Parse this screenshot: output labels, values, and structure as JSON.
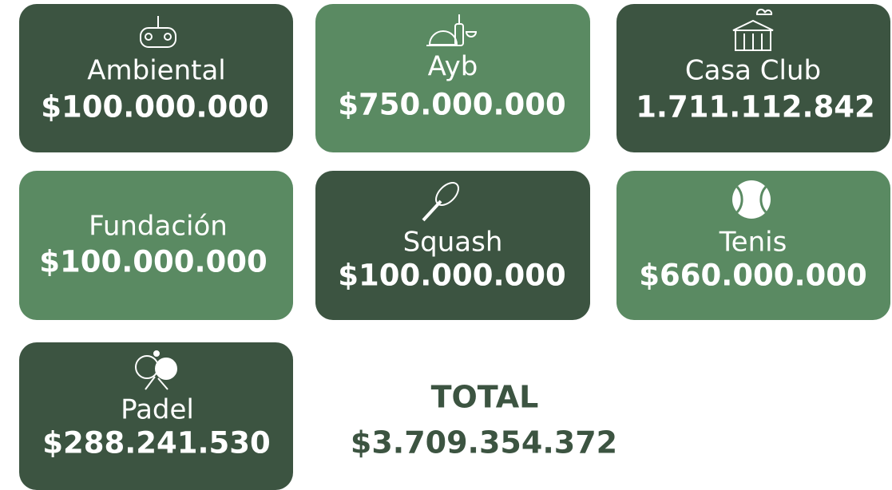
{
  "cards": [
    {
      "name": "Ambiental",
      "amount": "$100.000.000"
    },
    {
      "name": "Ayb",
      "amount": "$750.000.000"
    },
    {
      "name": "Casa Club",
      "amount": "1.711.112.842"
    },
    {
      "name": "Fundación",
      "amount": "$100.000.000"
    },
    {
      "name": "Squash",
      "amount": "$100.000.000"
    },
    {
      "name": "Tenis",
      "amount": "$660.000.000"
    },
    {
      "name": "Padel",
      "amount": "$288.241.530"
    }
  ],
  "total": {
    "label": "TOTAL",
    "amount": "$3.709.354.372"
  }
}
